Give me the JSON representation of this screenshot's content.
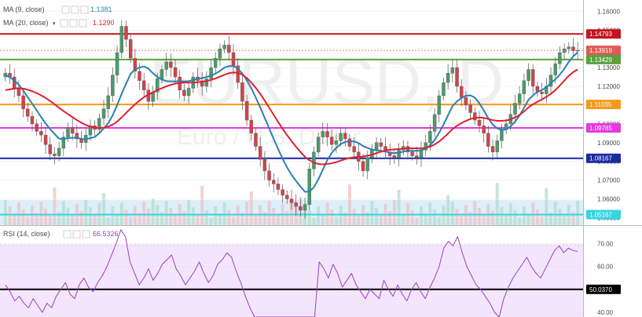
{
  "watermark": {
    "symbol": "EURUSD, D",
    "description": "Euro / U.S. Dollar"
  },
  "legends": {
    "ma9": {
      "label": "MA (9, close)",
      "value": "1.1381",
      "color": "#2a7fb4"
    },
    "ma20": {
      "label": "MA (20, close)",
      "value": "1.1290",
      "color": "#e01f2f"
    },
    "rsi": {
      "label": "RSI (14, close)",
      "value": "66.5326",
      "color": "#9c3fc2"
    }
  },
  "chart_data": [
    {
      "type": "candlestick",
      "ylim": [
        1.046,
        1.166
      ],
      "y_ticks": [
        "1.16000",
        "1.15000",
        "1.14000",
        "1.13000",
        "1.12000",
        "1.11000",
        "1.10000",
        "1.09000",
        "1.08000",
        "1.07000",
        "1.06000",
        "1.05000"
      ],
      "price_levels": [
        {
          "value": 1.14793,
          "label": "1.14793",
          "color": "#c4141d"
        },
        {
          "value": 1.13919,
          "label": "1.13919",
          "color": "#e05b55"
        },
        {
          "value": 1.13429,
          "label": "1.13429",
          "color": "#5aa13e"
        },
        {
          "value": 1.11035,
          "label": "1.11035",
          "color": "#f39a1b"
        },
        {
          "value": 1.09785,
          "label": "1.09785",
          "color": "#e33be0"
        },
        {
          "value": 1.08167,
          "label": "1.08167",
          "color": "#1a2aa0"
        },
        {
          "value": 1.05167,
          "label": "1.05167",
          "color": "#38d3e3"
        }
      ],
      "close": [
        1.127,
        1.125,
        1.119,
        1.115,
        1.108,
        1.104,
        1.1,
        1.096,
        1.094,
        1.089,
        1.084,
        1.083,
        1.087,
        1.093,
        1.098,
        1.095,
        1.092,
        1.09,
        1.094,
        1.099,
        1.097,
        1.103,
        1.108,
        1.115,
        1.126,
        1.138,
        1.152,
        1.145,
        1.135,
        1.128,
        1.123,
        1.118,
        1.112,
        1.117,
        1.124,
        1.129,
        1.133,
        1.13,
        1.125,
        1.118,
        1.115,
        1.119,
        1.125,
        1.123,
        1.12,
        1.124,
        1.13,
        1.135,
        1.14,
        1.142,
        1.138,
        1.131,
        1.122,
        1.112,
        1.102,
        1.095,
        1.088,
        1.081,
        1.075,
        1.07,
        1.068,
        1.065,
        1.062,
        1.06,
        1.058,
        1.056,
        1.054,
        1.057,
        1.076,
        1.085,
        1.093,
        1.096,
        1.093,
        1.089,
        1.091,
        1.095,
        1.092,
        1.088,
        1.085,
        1.08,
        1.075,
        1.082,
        1.086,
        1.09,
        1.088,
        1.085,
        1.083,
        1.082,
        1.086,
        1.088,
        1.085,
        1.083,
        1.082,
        1.086,
        1.09,
        1.096,
        1.105,
        1.115,
        1.122,
        1.127,
        1.13,
        1.12,
        1.114,
        1.11,
        1.106,
        1.102,
        1.099,
        1.095,
        1.088,
        1.085,
        1.091,
        1.097,
        1.1,
        1.105,
        1.111,
        1.116,
        1.123,
        1.129,
        1.12,
        1.117,
        1.116,
        1.12,
        1.126,
        1.132,
        1.138,
        1.14,
        1.141,
        1.139,
        1.1392
      ],
      "series": [
        {
          "name": "MA (9, close)",
          "values": [
            1.126,
            1.1248,
            1.1232,
            1.1208,
            1.1178,
            1.1142,
            1.1108,
            1.1072,
            1.1036,
            1.1002,
            1.0972,
            1.0946,
            1.0922,
            1.0918,
            1.0924,
            1.0926,
            1.0926,
            1.092,
            1.0918,
            1.0924,
            1.093,
            1.095,
            1.0976,
            1.1004,
            1.1046,
            1.11,
            1.116,
            1.1214,
            1.1266,
            1.129,
            1.13,
            1.1306,
            1.1294,
            1.127,
            1.125,
            1.1236,
            1.1228,
            1.1226,
            1.1226,
            1.1228,
            1.1226,
            1.1228,
            1.1234,
            1.124,
            1.1244,
            1.125,
            1.1256,
            1.1268,
            1.1282,
            1.13,
            1.1308,
            1.1308,
            1.1294,
            1.1268,
            1.1232,
            1.119,
            1.114,
            1.1088,
            1.1032,
            1.0976,
            1.092,
            1.0866,
            1.0814,
            1.0768,
            1.0728,
            1.0696,
            1.0666,
            1.0638,
            1.0638,
            1.0662,
            1.0704,
            1.0756,
            1.0806,
            1.0846,
            1.0872,
            1.0892,
            1.0904,
            1.0908,
            1.0906,
            1.0898,
            1.0882,
            1.0872,
            1.0862,
            1.086,
            1.0856,
            1.0852,
            1.0848,
            1.0844,
            1.0846,
            1.0852,
            1.0856,
            1.0856,
            1.0856,
            1.086,
            1.0868,
            1.0886,
            1.0914,
            1.0952,
            1.0996,
            1.1046,
            1.1094,
            1.112,
            1.1138,
            1.115,
            1.1152,
            1.114,
            1.111,
            1.1072,
            1.103,
            1.0996,
            1.0976,
            1.0968,
            1.097,
            1.0986,
            1.1012,
            1.1044,
            1.1086,
            1.1128,
            1.1152,
            1.117,
            1.118,
            1.1196,
            1.1216,
            1.1238,
            1.1262,
            1.1294,
            1.133,
            1.136,
            1.1381
          ]
        },
        {
          "name": "MA (20, close)",
          "values": [
            1.118,
            1.1184,
            1.1188,
            1.119,
            1.1188,
            1.1182,
            1.1174,
            1.1164,
            1.1152,
            1.1138,
            1.1122,
            1.1104,
            1.1086,
            1.1068,
            1.1052,
            1.1036,
            1.102,
            1.1006,
            1.0994,
            1.0986,
            1.098,
            1.0978,
            1.098,
            1.0986,
            1.0996,
            1.1012,
            1.1034,
            1.1058,
            1.1082,
            1.1104,
            1.1124,
            1.1142,
            1.1156,
            1.1168,
            1.118,
            1.119,
            1.12,
            1.1208,
            1.1214,
            1.1218,
            1.122,
            1.122,
            1.122,
            1.1222,
            1.1224,
            1.1228,
            1.1234,
            1.1242,
            1.1252,
            1.1262,
            1.127,
            1.1274,
            1.1272,
            1.1262,
            1.1244,
            1.122,
            1.1192,
            1.116,
            1.1124,
            1.1086,
            1.1048,
            1.101,
            1.0974,
            1.094,
            1.0908,
            1.0878,
            1.085,
            1.0824,
            1.0806,
            1.0794,
            1.0786,
            1.0784,
            1.0786,
            1.079,
            1.0796,
            1.0804,
            1.0812,
            1.0818,
            1.0822,
            1.0824,
            1.0826,
            1.083,
            1.0836,
            1.0844,
            1.0852,
            1.0858,
            1.0862,
            1.0864,
            1.0866,
            1.0868,
            1.087,
            1.087,
            1.087,
            1.087,
            1.0872,
            1.0878,
            1.089,
            1.0906,
            1.0926,
            1.0948,
            1.0972,
            1.099,
            1.1004,
            1.1016,
            1.1026,
            1.1032,
            1.1034,
            1.1032,
            1.1026,
            1.102,
            1.1016,
            1.1016,
            1.1018,
            1.1024,
            1.1034,
            1.1048,
            1.1066,
            1.1088,
            1.1104,
            1.1118,
            1.113,
            1.1144,
            1.116,
            1.118,
            1.1204,
            1.123,
            1.1256,
            1.1276,
            1.129
          ]
        }
      ]
    },
    {
      "type": "line",
      "name": "RSI (14, close)",
      "ylim": [
        38,
        78
      ],
      "y_ticks": [
        "70.00",
        "60.00",
        "40.00"
      ],
      "level": {
        "value": 50.037,
        "label": "50.0370",
        "color": "#000000"
      },
      "values": [
        52,
        49,
        45,
        47,
        44,
        42,
        46,
        43,
        40,
        44,
        42,
        47,
        50,
        53,
        48,
        46,
        52,
        55,
        51,
        49,
        53,
        56,
        60,
        65,
        70,
        76,
        73,
        62,
        57,
        52,
        55,
        59,
        54,
        57,
        61,
        63,
        65,
        59,
        56,
        52,
        55,
        58,
        62,
        57,
        53,
        56,
        61,
        63,
        66,
        64,
        58,
        53,
        47,
        42,
        38,
        38,
        38,
        38,
        38,
        38,
        38,
        38,
        38,
        38,
        38,
        38,
        38,
        38,
        62,
        59,
        55,
        61,
        57,
        51,
        54,
        57,
        52,
        49,
        46,
        50,
        48,
        46,
        54,
        50,
        47,
        52,
        48,
        45,
        50,
        53,
        49,
        46,
        51,
        55,
        60,
        68,
        71,
        69,
        73,
        66,
        60,
        56,
        52,
        50,
        47,
        44,
        40,
        38,
        46,
        51,
        55,
        58,
        61,
        64,
        60,
        57,
        55,
        59,
        63,
        67,
        69,
        66,
        68,
        67,
        66.5326
      ]
    }
  ]
}
